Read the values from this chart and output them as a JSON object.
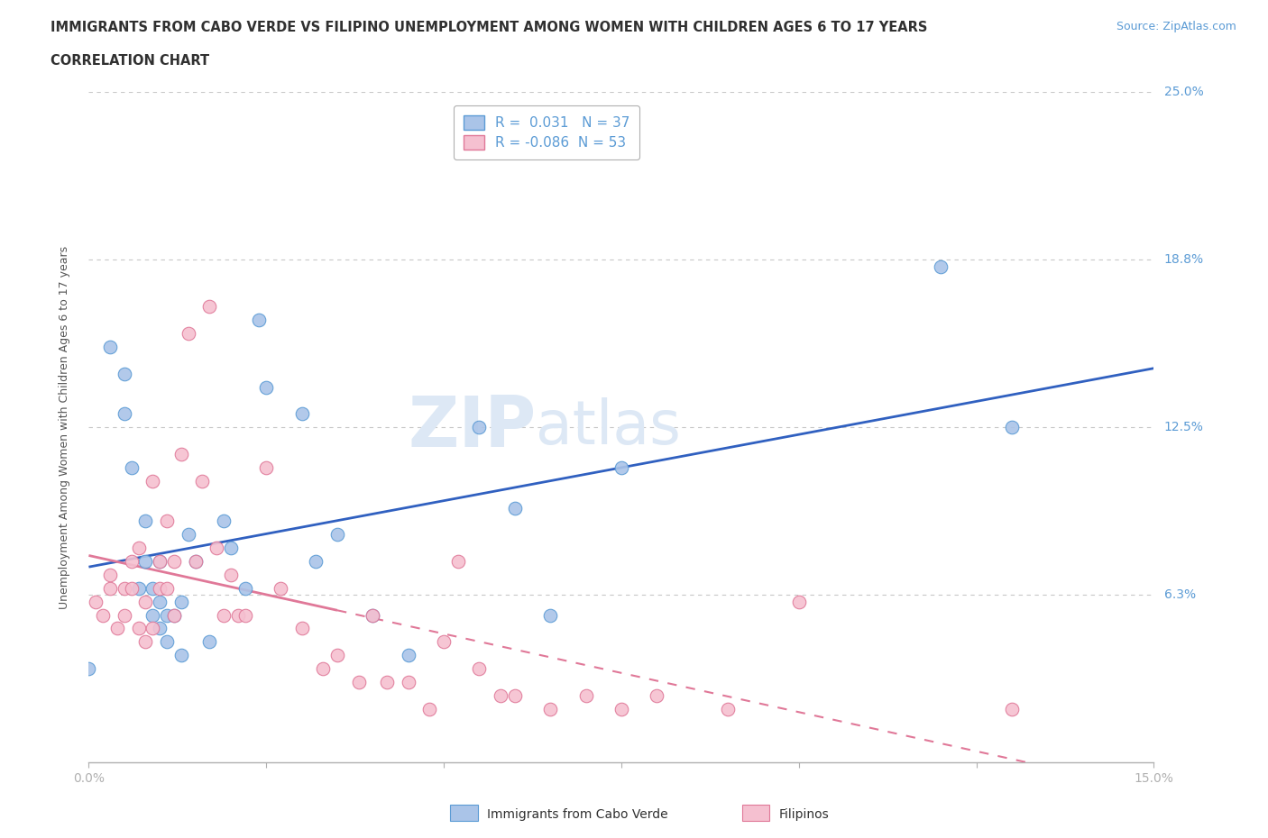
{
  "title_line1": "IMMIGRANTS FROM CABO VERDE VS FILIPINO UNEMPLOYMENT AMONG WOMEN WITH CHILDREN AGES 6 TO 17 YEARS",
  "title_line2": "CORRELATION CHART",
  "source_text": "Source: ZipAtlas.com",
  "ylabel": "Unemployment Among Women with Children Ages 6 to 17 years",
  "xmin": 0.0,
  "xmax": 0.15,
  "ymin": 0.0,
  "ymax": 0.25,
  "yticks": [
    0.0,
    0.0625,
    0.125,
    0.1875,
    0.25
  ],
  "ytick_labels": [
    "",
    "6.3%",
    "12.5%",
    "18.8%",
    "25.0%"
  ],
  "xticks": [
    0.0,
    0.025,
    0.05,
    0.075,
    0.1,
    0.125,
    0.15
  ],
  "grid_color": "#c8c8c8",
  "tick_color": "#5b9bd5",
  "axis_color": "#b0b0b0",
  "background_color": "#ffffff",
  "watermark_text": "ZIPatlas",
  "watermark_color": "#dde8f5",
  "cabo_verde_color": "#aac4e8",
  "cabo_verde_edge": "#5b9bd5",
  "filipino_color": "#f5c0d0",
  "filipino_edge": "#e07898",
  "cabo_verde_R": 0.031,
  "cabo_verde_N": 37,
  "filipino_R": -0.086,
  "filipino_N": 53,
  "legend_label_cabo": "Immigrants from Cabo Verde",
  "legend_label_filipino": "Filipinos",
  "cabo_verde_line_color": "#3060c0",
  "filipino_line_color": "#e07898",
  "cabo_verde_x": [
    0.0,
    0.003,
    0.005,
    0.005,
    0.006,
    0.007,
    0.008,
    0.008,
    0.009,
    0.009,
    0.01,
    0.01,
    0.01,
    0.011,
    0.011,
    0.012,
    0.013,
    0.013,
    0.014,
    0.015,
    0.017,
    0.019,
    0.02,
    0.022,
    0.024,
    0.025,
    0.03,
    0.032,
    0.035,
    0.04,
    0.045,
    0.055,
    0.06,
    0.065,
    0.075,
    0.12,
    0.13
  ],
  "cabo_verde_y": [
    0.035,
    0.155,
    0.145,
    0.13,
    0.11,
    0.065,
    0.09,
    0.075,
    0.065,
    0.055,
    0.075,
    0.06,
    0.05,
    0.055,
    0.045,
    0.055,
    0.06,
    0.04,
    0.085,
    0.075,
    0.045,
    0.09,
    0.08,
    0.065,
    0.165,
    0.14,
    0.13,
    0.075,
    0.085,
    0.055,
    0.04,
    0.125,
    0.095,
    0.055,
    0.11,
    0.185,
    0.125
  ],
  "filipino_x": [
    0.001,
    0.002,
    0.003,
    0.003,
    0.004,
    0.005,
    0.005,
    0.006,
    0.006,
    0.007,
    0.007,
    0.008,
    0.008,
    0.009,
    0.009,
    0.01,
    0.01,
    0.011,
    0.011,
    0.012,
    0.012,
    0.013,
    0.014,
    0.015,
    0.016,
    0.017,
    0.018,
    0.019,
    0.02,
    0.021,
    0.022,
    0.025,
    0.027,
    0.03,
    0.033,
    0.035,
    0.038,
    0.04,
    0.042,
    0.045,
    0.048,
    0.05,
    0.052,
    0.055,
    0.058,
    0.06,
    0.065,
    0.07,
    0.075,
    0.08,
    0.09,
    0.1,
    0.13
  ],
  "filipino_y": [
    0.06,
    0.055,
    0.065,
    0.07,
    0.05,
    0.065,
    0.055,
    0.075,
    0.065,
    0.08,
    0.05,
    0.045,
    0.06,
    0.05,
    0.105,
    0.065,
    0.075,
    0.09,
    0.065,
    0.055,
    0.075,
    0.115,
    0.16,
    0.075,
    0.105,
    0.17,
    0.08,
    0.055,
    0.07,
    0.055,
    0.055,
    0.11,
    0.065,
    0.05,
    0.035,
    0.04,
    0.03,
    0.055,
    0.03,
    0.03,
    0.02,
    0.045,
    0.075,
    0.035,
    0.025,
    0.025,
    0.02,
    0.025,
    0.02,
    0.025,
    0.02,
    0.06,
    0.02
  ]
}
